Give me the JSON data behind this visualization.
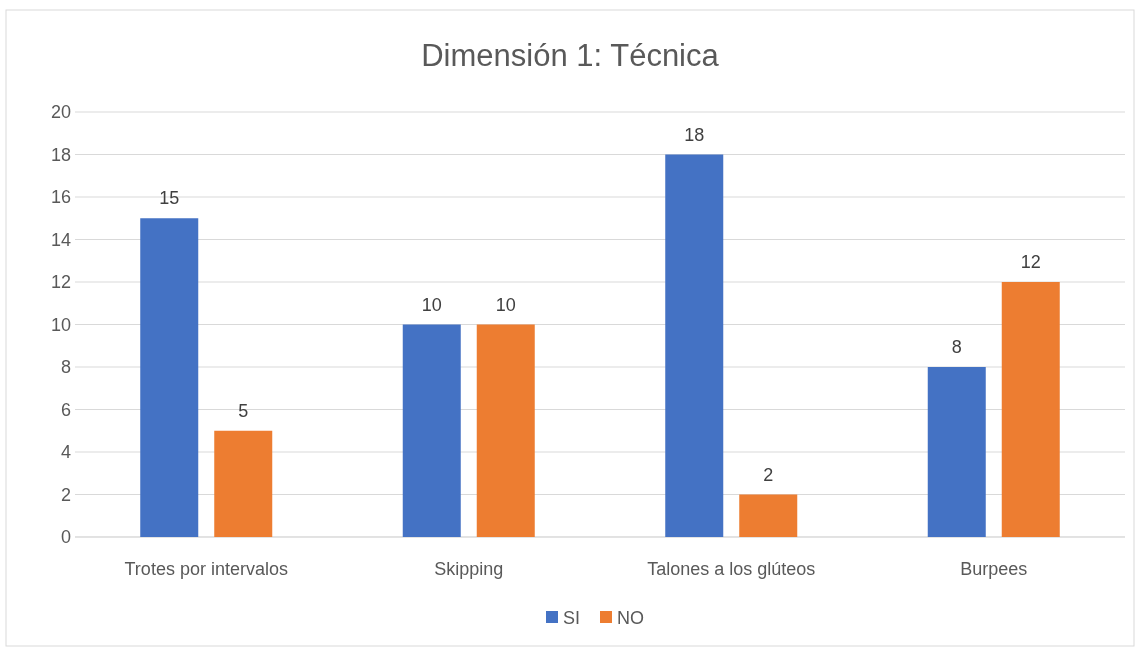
{
  "chart_data": {
    "type": "bar",
    "title": "Dimensión 1: Técnica",
    "categories": [
      "Trotes por intervalos",
      "Skipping",
      "Talones a los glúteos",
      "Burpees"
    ],
    "series": [
      {
        "name": "SI",
        "color": "#4472c4",
        "values": [
          15,
          10,
          18,
          8
        ]
      },
      {
        "name": "NO",
        "color": "#ed7d31",
        "values": [
          5,
          10,
          2,
          12
        ]
      }
    ],
    "ylim": [
      0,
      20
    ],
    "yticks": [
      0,
      2,
      4,
      6,
      8,
      10,
      12,
      14,
      16,
      18,
      20
    ],
    "grid": "y",
    "legend": "bottom",
    "data_labels": true
  }
}
